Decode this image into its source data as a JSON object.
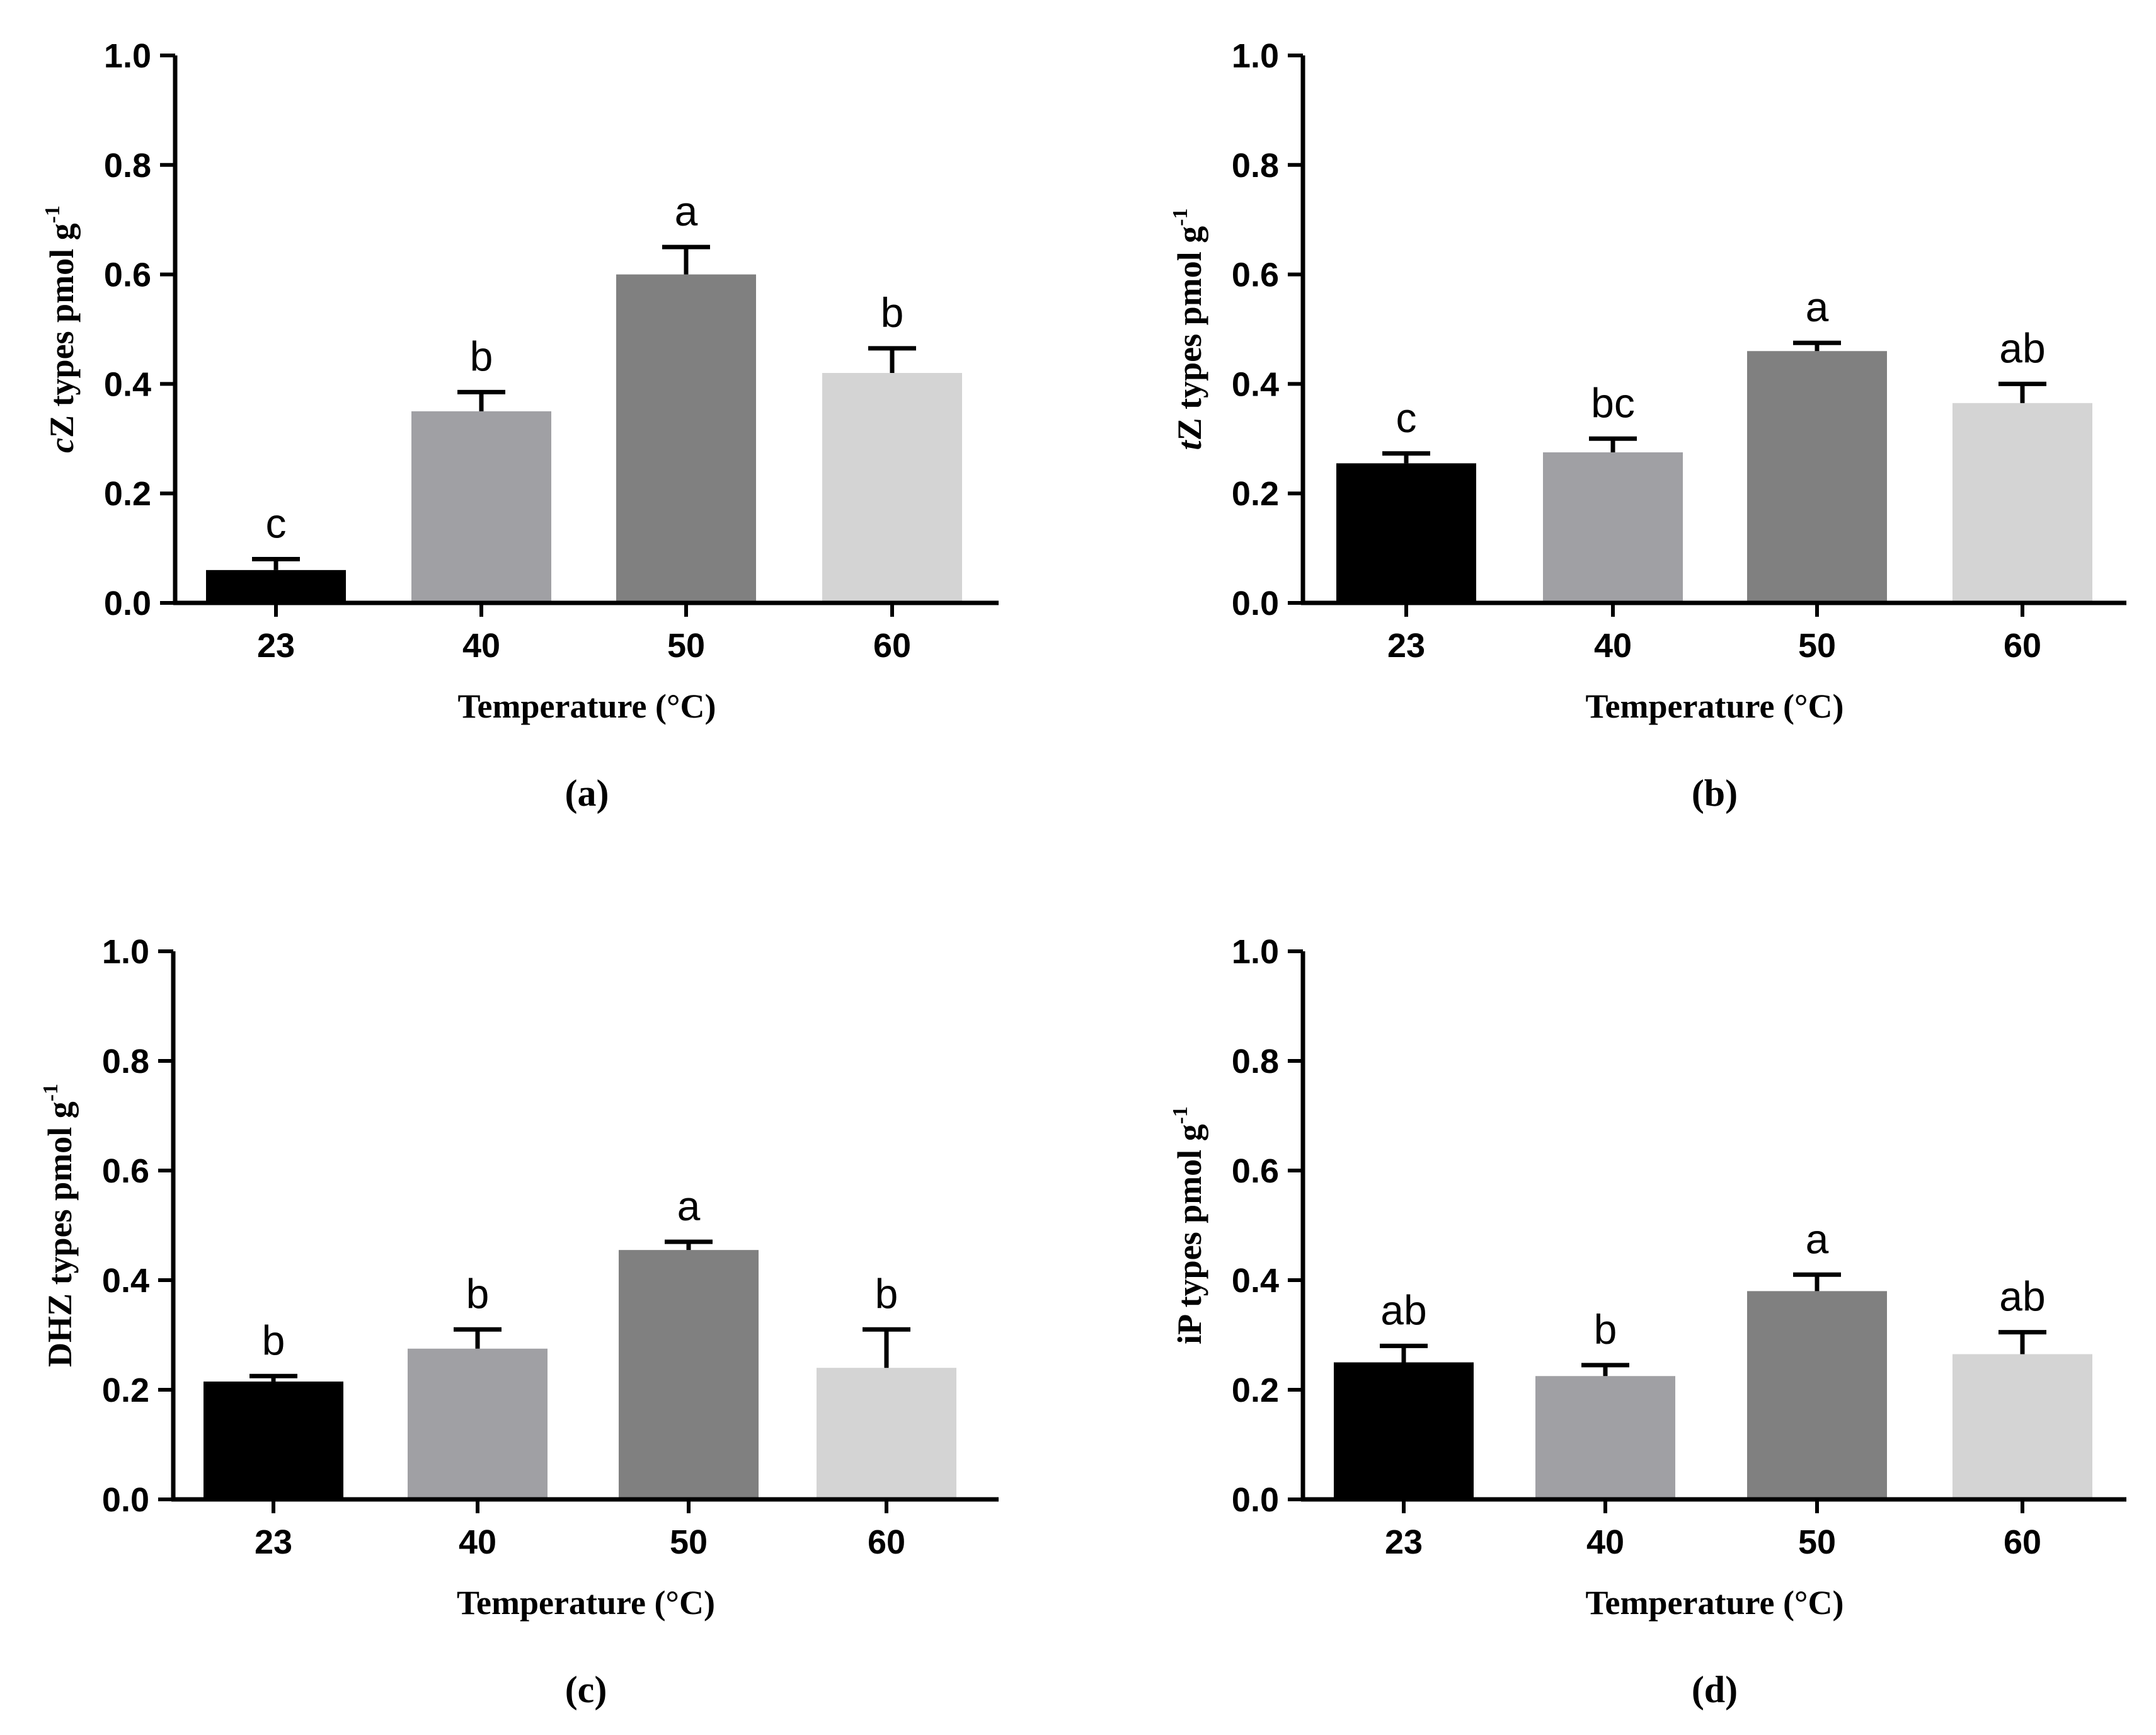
{
  "chart_data": [
    {
      "panel_label": "(a)",
      "type": "bar",
      "categories": [
        "23",
        "40",
        "50",
        "60"
      ],
      "values": [
        0.06,
        0.35,
        0.6,
        0.42
      ],
      "errors": [
        0.02,
        0.035,
        0.05,
        0.045
      ],
      "significance": [
        "c",
        "b",
        "a",
        "b"
      ],
      "ylabel_italic": "c",
      "ylabel_rest": "Z types pmol g",
      "ylabel_sup": "-1",
      "xlabel": "Temperature (°C)",
      "ylim": [
        0,
        1.0
      ],
      "yticks": [
        "0.0",
        "0.2",
        "0.4",
        "0.6",
        "0.8",
        "1.0"
      ],
      "colors": [
        "#000000",
        "#a0a0a4",
        "#808080",
        "#d4d4d4"
      ]
    },
    {
      "panel_label": "(b)",
      "type": "bar",
      "categories": [
        "23",
        "40",
        "50",
        "60"
      ],
      "values": [
        0.255,
        0.275,
        0.46,
        0.365
      ],
      "errors": [
        0.018,
        0.025,
        0.015,
        0.035
      ],
      "significance": [
        "c",
        "bc",
        "a",
        "ab"
      ],
      "ylabel_italic": "t",
      "ylabel_rest": "Z types pmol g",
      "ylabel_sup": "-1",
      "xlabel": "Temperature (°C)",
      "ylim": [
        0,
        1.0
      ],
      "yticks": [
        "0.0",
        "0.2",
        "0.4",
        "0.6",
        "0.8",
        "1.0"
      ],
      "colors": [
        "#000000",
        "#a0a0a4",
        "#808080",
        "#d4d4d4"
      ]
    },
    {
      "panel_label": "(c)",
      "type": "bar",
      "categories": [
        "23",
        "40",
        "50",
        "60"
      ],
      "values": [
        0.215,
        0.275,
        0.455,
        0.24
      ],
      "errors": [
        0.01,
        0.035,
        0.015,
        0.07
      ],
      "significance": [
        "b",
        "b",
        "a",
        "b"
      ],
      "ylabel_italic": "",
      "ylabel_rest": "DHZ types pmol g",
      "ylabel_sup": "-1",
      "xlabel": "Temperature (°C)",
      "ylim": [
        0,
        1.0
      ],
      "yticks": [
        "0.0",
        "0.2",
        "0.4",
        "0.6",
        "0.8",
        "1.0"
      ],
      "colors": [
        "#000000",
        "#a0a0a4",
        "#808080",
        "#d4d4d4"
      ]
    },
    {
      "panel_label": "(d)",
      "type": "bar",
      "categories": [
        "23",
        "40",
        "50",
        "60"
      ],
      "values": [
        0.25,
        0.225,
        0.38,
        0.265
      ],
      "errors": [
        0.03,
        0.02,
        0.03,
        0.04
      ],
      "significance": [
        "ab",
        "b",
        "a",
        "ab"
      ],
      "ylabel_italic": "",
      "ylabel_rest": "iP types pmol g",
      "ylabel_sup": "-1",
      "xlabel": "Temperature (°C)",
      "ylim": [
        0,
        1.0
      ],
      "yticks": [
        "0.0",
        "0.2",
        "0.4",
        "0.6",
        "0.8",
        "1.0"
      ],
      "colors": [
        "#000000",
        "#a0a0a4",
        "#808080",
        "#d4d4d4"
      ]
    }
  ]
}
